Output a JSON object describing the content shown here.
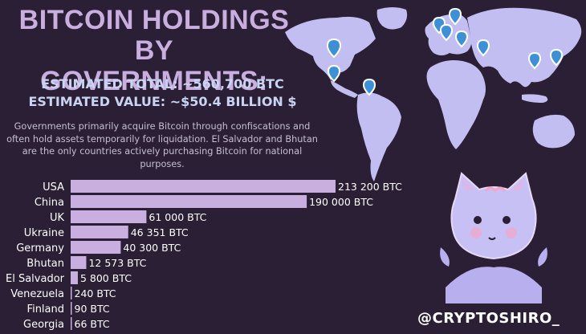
{
  "header": {
    "title_line1": "BITCOIN HOLDINGS BY",
    "title_line2": "GOVERNMENTS:",
    "total": "ESTIMATED TOTAL: ~560,700 BTC",
    "value": "ESTIMATED VALUE: ~$50.4 BILLION $",
    "description": "Governments primarily acquire Bitcoin through confiscations and often hold assets temporarily for liquidation. El Salvador and Bhutan are  the only countries actively purchasing Bitcoin for national purposes."
  },
  "footer": {
    "handle": "@CRYPTOSHIRO_"
  },
  "colors": {
    "background": "#2a1f35",
    "bar": "#c9aee0",
    "title": "#c9aee0",
    "map": "#c3bef2",
    "pin": "#3d8fd6"
  },
  "chart_data": {
    "type": "bar",
    "orientation": "horizontal",
    "categories": [
      "USA",
      "China",
      "UK",
      "Ukraine",
      "Germany",
      "Bhutan",
      "El Salvador",
      "Venezuela",
      "Finland",
      "Georgia"
    ],
    "values": [
      213200,
      190000,
      61000,
      46351,
      40300,
      12573,
      5800,
      240,
      90,
      66
    ],
    "value_labels": [
      "213 200 BTC",
      "190 000 BTC",
      "61 000 BTC",
      "46 351 BTC",
      "40 300 BTC",
      "12 573 BTC",
      "5 800 BTC",
      "240 BTC",
      "90 BTC",
      "66 BTC"
    ],
    "xlim": [
      0,
      213200
    ],
    "grid": false,
    "legend": "none"
  }
}
